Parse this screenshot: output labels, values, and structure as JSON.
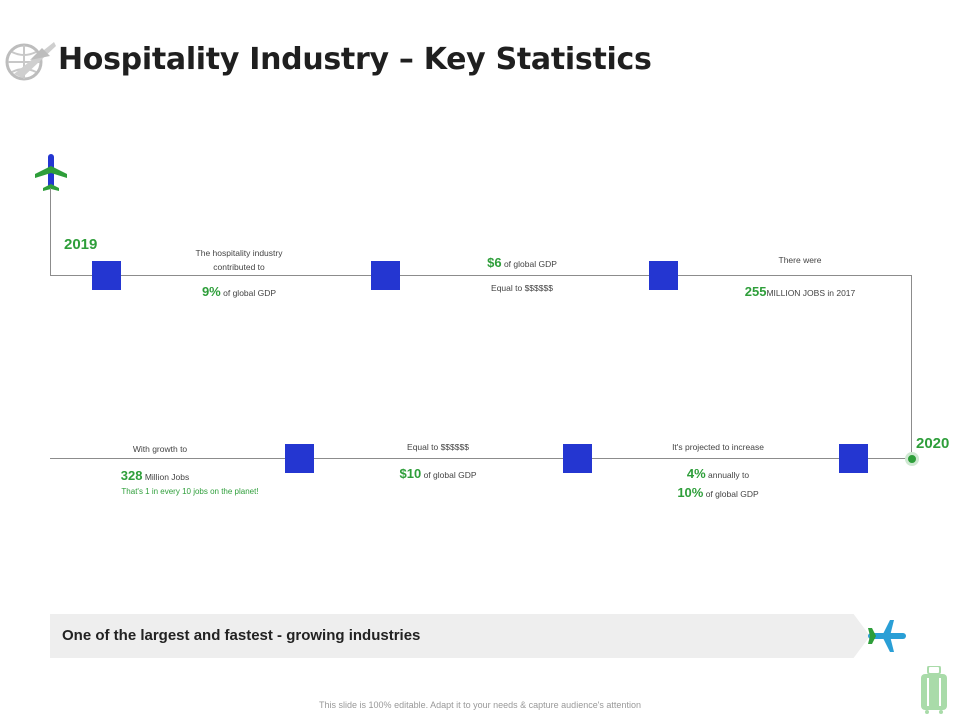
{
  "title": "Hospitality Industry – Key Statistics",
  "timeline": {
    "start_year": "2019",
    "end_year": "2020",
    "top": [
      {
        "caption": "The hospitality industry\ncontributed to",
        "stat_big": "9%",
        "stat_rest": "of global GDP"
      },
      {
        "stat_big": "$6",
        "stat_rest": "of global GDP",
        "caption": "Equal to $$$$$$"
      },
      {
        "caption": "There were",
        "stat_big": "255",
        "stat_rest": "MILLION JOBS in 2017"
      }
    ],
    "bottom": [
      {
        "caption": "With growth to",
        "stat_big": "328",
        "stat_rest": "Million Jobs",
        "note": "That's 1 in every 10 jobs on the planet!"
      },
      {
        "caption": "Equal to $$$$$$",
        "stat_big": "$10",
        "stat_rest": "of global GDP"
      },
      {
        "caption": "It's projected to increase",
        "stat_big": "4%",
        "stat_rest": "annually to",
        "stat2_big": "10%",
        "stat2_rest": "of global GDP"
      }
    ]
  },
  "banner_text": "One of the largest and fastest - growing industries",
  "footer": "This slide is 100% editable. Adapt it to your needs & capture audience's attention",
  "icons": {
    "logo": "globe-plane-icon",
    "start": "airplane-icon",
    "banner": "airplane-icon",
    "corner": "luggage-icon"
  },
  "colors": {
    "accent": "#2e9e3a",
    "square": "#2436d1",
    "plane_blue": "#2a9fd6"
  }
}
